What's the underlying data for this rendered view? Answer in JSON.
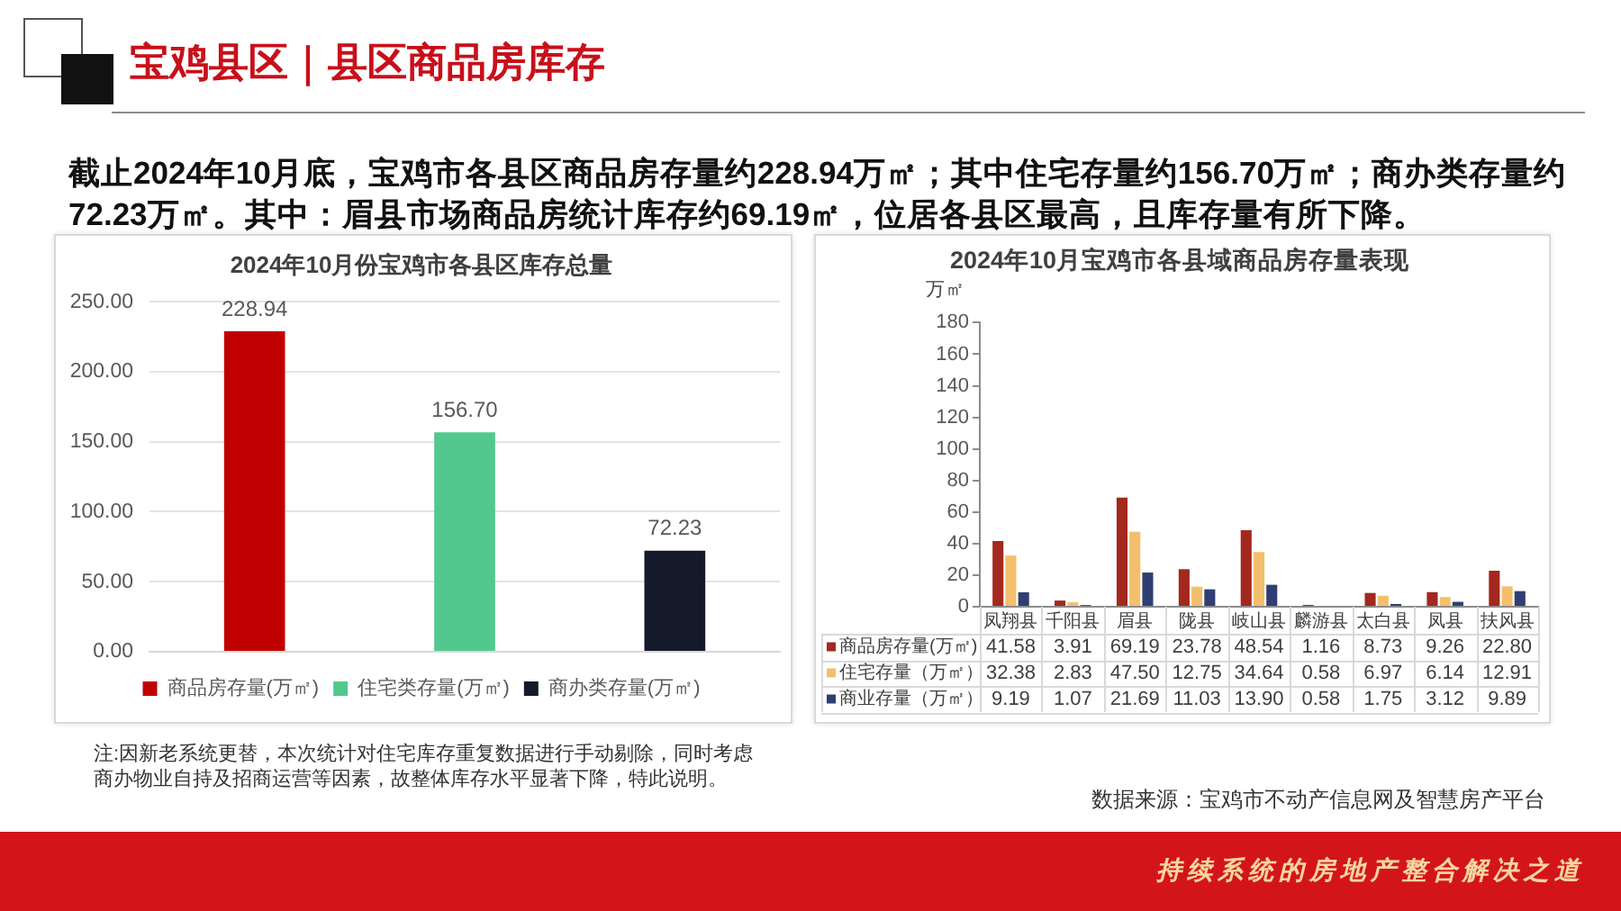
{
  "chart_data": [
    {
      "type": "other",
      "title": "宝鸡县区｜县区商品房库存",
      "subtitle": "截止2024年10月底，宝鸡市各县区商品房存量约228.94万㎡；其中住宅存量约156.70万㎡；商办类存量约72.23万㎡。其中：眉县市场商品房统计库存约69.19㎡，位居各县区最高，且库存量有所下降。",
      "annotations": [
        "持续系统的房地产整合解决之道"
      ]
    },
    {
      "type": "bar",
      "title": "2024年10月份宝鸡市各县区库存总量",
      "categories": [
        null,
        null,
        null
      ],
      "series": [
        {
          "name": "商品房存量(万㎡)",
          "color": "#c00000",
          "values": [
            228.94,
            null,
            null
          ],
          "value_labels": [
            "228.94",
            null,
            null
          ]
        },
        {
          "name": "住宅类存量(万㎡)",
          "color": "#52c88e",
          "values": [
            null,
            156.7,
            null
          ],
          "value_labels": [
            null,
            "156.70",
            null
          ]
        },
        {
          "name": "商办类存量(万㎡)",
          "color": "#141a2a",
          "values": [
            null,
            null,
            72.23
          ],
          "value_labels": [
            null,
            null,
            "72.23"
          ]
        }
      ],
      "ylim": [
        0,
        250
      ],
      "yticks": [
        {
          "value": 0,
          "label": "0.00"
        },
        {
          "value": 50,
          "label": "50.00"
        },
        {
          "value": 100,
          "label": "100.00"
        },
        {
          "value": 150,
          "label": "150.00"
        },
        {
          "value": 200,
          "label": "200.00"
        },
        {
          "value": 250,
          "label": "250.00"
        }
      ],
      "grid": "y",
      "legend": "bottom",
      "annotations": [
        "注:因新老系统更替，本次统计对住宅库存重复数据进行手动剔除，同时考虑商办物业自持及招商运营等因素，故整体库存水平显著下降，特此说明。"
      ]
    },
    {
      "type": "bar",
      "title": "2024年10月宝鸡市各县域商品房存量表现",
      "ylabel": "万㎡",
      "categories": [
        "凤翔县",
        "千阳县",
        "眉县",
        "陇县",
        "岐山县",
        "麟游县",
        "太白县",
        "凤县",
        "扶风县"
      ],
      "series": [
        {
          "name": "商品房存量(万㎡)",
          "color": "#a3281e",
          "values": [
            41.58,
            3.91,
            69.19,
            23.78,
            48.54,
            1.16,
            8.73,
            9.26,
            22.8
          ],
          "value_labels": [
            "41.58",
            "3.91",
            "69.19",
            "23.78",
            "48.54",
            "1.16",
            "8.73",
            "9.26",
            "22.80"
          ]
        },
        {
          "name": "住宅存量（万㎡）",
          "color": "#f4bf6c",
          "values": [
            32.38,
            2.83,
            47.5,
            12.75,
            34.64,
            0.58,
            6.97,
            6.14,
            12.91
          ],
          "value_labels": [
            "32.38",
            "2.83",
            "47.50",
            "12.75",
            "34.64",
            "0.58",
            "6.97",
            "6.14",
            "12.91"
          ]
        },
        {
          "name": "商业存量（万㎡）",
          "color": "#2f3f72",
          "values": [
            9.19,
            1.07,
            21.69,
            11.03,
            13.9,
            0.58,
            1.75,
            3.12,
            9.89
          ],
          "value_labels": [
            "9.19",
            "1.07",
            "21.69",
            "11.03",
            "13.90",
            "0.58",
            "1.75",
            "3.12",
            "9.89"
          ]
        }
      ],
      "ylim": [
        0,
        180
      ],
      "yticks": [
        0,
        20,
        40,
        60,
        80,
        100,
        120,
        140,
        160,
        180
      ],
      "legend": "bottom",
      "annotations": [
        "数据来源：宝鸡市不动产信息网及智慧房产平台"
      ]
    }
  ]
}
